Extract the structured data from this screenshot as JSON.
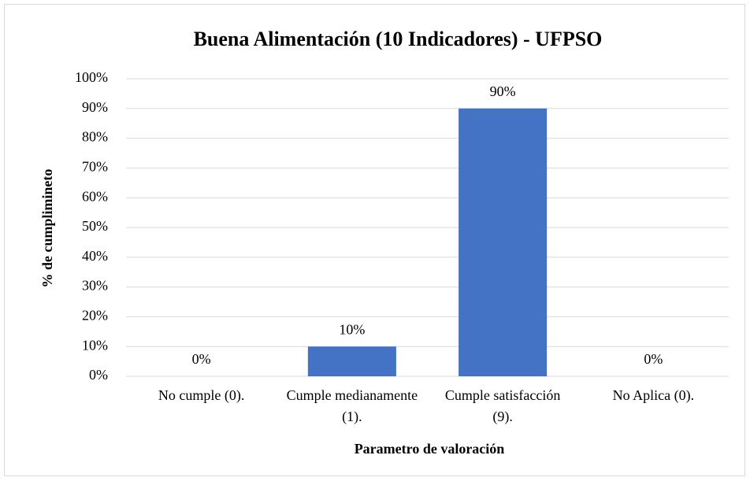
{
  "chart_data": {
    "type": "bar",
    "title": "Buena Alimentación  (10 Indicadores) - UFPSO",
    "x_label": "Parametro  de valoración",
    "y_label": "% de cumplimineto",
    "categories": [
      "No cumple (0).",
      "Cumple medianamente (1).",
      "Cumple satisfacción (9).",
      "No Aplica (0)."
    ],
    "values": [
      0,
      10,
      90,
      0
    ],
    "value_labels": [
      "0%",
      "10%",
      "90%",
      "0%"
    ],
    "color": "#4472c4",
    "ylim": [
      0,
      100
    ],
    "yticks": [
      {
        "value": 0,
        "label": "0%"
      },
      {
        "value": 10,
        "label": "10%"
      },
      {
        "value": 20,
        "label": "20%"
      },
      {
        "value": 30,
        "label": "30%"
      },
      {
        "value": 40,
        "label": "40%"
      },
      {
        "value": 50,
        "label": "50%"
      },
      {
        "value": 60,
        "label": "60%"
      },
      {
        "value": 70,
        "label": "70%"
      },
      {
        "value": 80,
        "label": "80%"
      },
      {
        "value": 90,
        "label": "90%"
      },
      {
        "value": 100,
        "label": "100%"
      }
    ],
    "grid": true
  }
}
